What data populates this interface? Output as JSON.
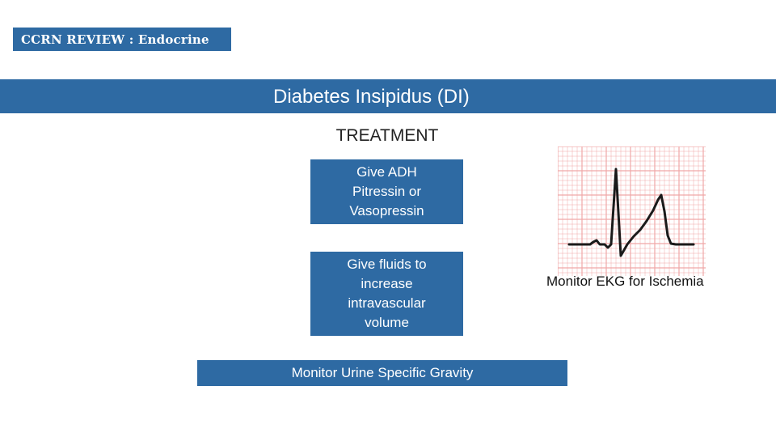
{
  "header": {
    "logo_text": "CCRN REVIEW : Endocrine"
  },
  "title_bar": {
    "title": "Diabetes Insipidus (DI)"
  },
  "section": {
    "heading": "TREATMENT"
  },
  "boxes": {
    "adh": {
      "lines": [
        "Give ADH",
        "Pitressin or",
        "Vasopressin"
      ]
    },
    "fluids": {
      "lines": [
        "Give fluids to",
        "increase",
        "intravascular",
        "volume"
      ]
    },
    "urine": {
      "text": "Monitor Urine Specific Gravity"
    }
  },
  "ekg": {
    "caption": "Monitor EKG for Ischemia",
    "grid_color": "#f0a8a8",
    "trace_color": "#1a1a1a"
  },
  "colors": {
    "accent": "#2e6aa3",
    "background": "#ffffff"
  }
}
